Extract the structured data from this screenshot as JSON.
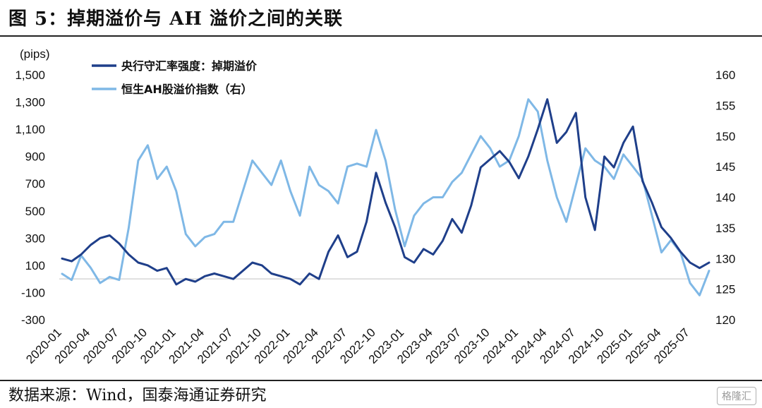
{
  "figure": {
    "title": "图 5：掉期溢价与 AH 溢价之间的关联",
    "source": "数据来源：Wind，国泰海通证券研究",
    "watermark": "格隆汇"
  },
  "chart_data": {
    "type": "line",
    "title": "",
    "y_left": {
      "unit_label": "(pips)",
      "ylim": [
        -300,
        1500
      ],
      "ticks": [
        -300,
        -100,
        100,
        300,
        500,
        700,
        900,
        1100,
        1300,
        1500
      ],
      "tick_labels": [
        "-300",
        "-100",
        "100",
        "300",
        "500",
        "700",
        "900",
        "1,100",
        "1,300",
        "1,500"
      ]
    },
    "y_right": {
      "ylim": [
        120,
        160
      ],
      "ticks": [
        120,
        125,
        130,
        135,
        140,
        145,
        150,
        155,
        160
      ]
    },
    "x_ticks": [
      "2020-01",
      "2020-04",
      "2020-07",
      "2020-10",
      "2021-01",
      "2021-04",
      "2021-07",
      "2021-10",
      "2022-01",
      "2022-04",
      "2022-07",
      "2022-10",
      "2023-01",
      "2023-04",
      "2023-07",
      "2023-10",
      "2024-01",
      "2024-04",
      "2024-07",
      "2024-10",
      "2025-01",
      "2025-04",
      "2025-07"
    ],
    "legend": "top-left",
    "grid": false,
    "series": [
      {
        "name": "央行守汇率强度：掉期溢价",
        "axis": "left",
        "color": "#1f3f8a",
        "points": [
          [
            "2020-01",
            150
          ],
          [
            "2020-02",
            130
          ],
          [
            "2020-03",
            180
          ],
          [
            "2020-04",
            250
          ],
          [
            "2020-05",
            300
          ],
          [
            "2020-06",
            320
          ],
          [
            "2020-07",
            260
          ],
          [
            "2020-08",
            180
          ],
          [
            "2020-09",
            120
          ],
          [
            "2020-10",
            100
          ],
          [
            "2020-11",
            60
          ],
          [
            "2020-12",
            80
          ],
          [
            "2021-01",
            -40
          ],
          [
            "2021-02",
            0
          ],
          [
            "2021-03",
            -20
          ],
          [
            "2021-04",
            20
          ],
          [
            "2021-05",
            40
          ],
          [
            "2021-06",
            20
          ],
          [
            "2021-07",
            0
          ],
          [
            "2021-08",
            60
          ],
          [
            "2021-09",
            120
          ],
          [
            "2021-10",
            100
          ],
          [
            "2021-11",
            40
          ],
          [
            "2021-12",
            20
          ],
          [
            "2022-01",
            0
          ],
          [
            "2022-02",
            -40
          ],
          [
            "2022-03",
            40
          ],
          [
            "2022-04",
            0
          ],
          [
            "2022-05",
            200
          ],
          [
            "2022-06",
            320
          ],
          [
            "2022-07",
            160
          ],
          [
            "2022-08",
            200
          ],
          [
            "2022-09",
            420
          ],
          [
            "2022-10",
            780
          ],
          [
            "2022-11",
            560
          ],
          [
            "2022-12",
            380
          ],
          [
            "2023-01",
            160
          ],
          [
            "2023-02",
            120
          ],
          [
            "2023-03",
            220
          ],
          [
            "2023-04",
            180
          ],
          [
            "2023-05",
            280
          ],
          [
            "2023-06",
            440
          ],
          [
            "2023-07",
            340
          ],
          [
            "2023-08",
            540
          ],
          [
            "2023-09",
            820
          ],
          [
            "2023-10",
            880
          ],
          [
            "2023-11",
            940
          ],
          [
            "2023-12",
            860
          ],
          [
            "2024-01",
            740
          ],
          [
            "2024-02",
            900
          ],
          [
            "2024-03",
            1100
          ],
          [
            "2024-04",
            1320
          ],
          [
            "2024-05",
            1000
          ],
          [
            "2024-06",
            1080
          ],
          [
            "2024-07",
            1220
          ],
          [
            "2024-08",
            600
          ],
          [
            "2024-09",
            360
          ],
          [
            "2024-10",
            900
          ],
          [
            "2024-11",
            820
          ],
          [
            "2024-12",
            1000
          ],
          [
            "2025-01",
            1120
          ],
          [
            "2025-02",
            720
          ],
          [
            "2025-03",
            560
          ],
          [
            "2025-04",
            380
          ],
          [
            "2025-05",
            300
          ],
          [
            "2025-06",
            200
          ],
          [
            "2025-07",
            120
          ],
          [
            "2025-08",
            80
          ],
          [
            "2025-09",
            120
          ]
        ]
      },
      {
        "name": "恒生AH股溢价指数（右）",
        "axis": "right",
        "color": "#7fb8e6",
        "points": [
          [
            "2020-01",
            127.5
          ],
          [
            "2020-02",
            126.5
          ],
          [
            "2020-03",
            130.5
          ],
          [
            "2020-04",
            128.5
          ],
          [
            "2020-05",
            126
          ],
          [
            "2020-06",
            127
          ],
          [
            "2020-07",
            126.5
          ],
          [
            "2020-08",
            135
          ],
          [
            "2020-09",
            146
          ],
          [
            "2020-10",
            148.5
          ],
          [
            "2020-11",
            143
          ],
          [
            "2020-12",
            145
          ],
          [
            "2021-01",
            141
          ],
          [
            "2021-02",
            134
          ],
          [
            "2021-03",
            132
          ],
          [
            "2021-04",
            133.5
          ],
          [
            "2021-05",
            134
          ],
          [
            "2021-06",
            136
          ],
          [
            "2021-07",
            136
          ],
          [
            "2021-08",
            141
          ],
          [
            "2021-09",
            146
          ],
          [
            "2021-10",
            144
          ],
          [
            "2021-11",
            142
          ],
          [
            "2021-12",
            146
          ],
          [
            "2022-01",
            141
          ],
          [
            "2022-02",
            137
          ],
          [
            "2022-03",
            145
          ],
          [
            "2022-04",
            142
          ],
          [
            "2022-05",
            141
          ],
          [
            "2022-06",
            139
          ],
          [
            "2022-07",
            145
          ],
          [
            "2022-08",
            145.5
          ],
          [
            "2022-09",
            145
          ],
          [
            "2022-10",
            151
          ],
          [
            "2022-11",
            146
          ],
          [
            "2022-12",
            138
          ],
          [
            "2023-01",
            132
          ],
          [
            "2023-02",
            137
          ],
          [
            "2023-03",
            139
          ],
          [
            "2023-04",
            140
          ],
          [
            "2023-05",
            140
          ],
          [
            "2023-06",
            142.5
          ],
          [
            "2023-07",
            144
          ],
          [
            "2023-08",
            147
          ],
          [
            "2023-09",
            150
          ],
          [
            "2023-10",
            148
          ],
          [
            "2023-11",
            145
          ],
          [
            "2023-12",
            146
          ],
          [
            "2024-01",
            150
          ],
          [
            "2024-02",
            156
          ],
          [
            "2024-03",
            154
          ],
          [
            "2024-04",
            146
          ],
          [
            "2024-05",
            140
          ],
          [
            "2024-06",
            136
          ],
          [
            "2024-07",
            142
          ],
          [
            "2024-08",
            148
          ],
          [
            "2024-09",
            146
          ],
          [
            "2024-10",
            145
          ],
          [
            "2024-11",
            143
          ],
          [
            "2024-12",
            147
          ],
          [
            "2025-01",
            145
          ],
          [
            "2025-02",
            143
          ],
          [
            "2025-03",
            137
          ],
          [
            "2025-04",
            131
          ],
          [
            "2025-05",
            133
          ],
          [
            "2025-06",
            131
          ],
          [
            "2025-07",
            126
          ],
          [
            "2025-08",
            124
          ],
          [
            "2025-09",
            128
          ]
        ]
      }
    ]
  }
}
